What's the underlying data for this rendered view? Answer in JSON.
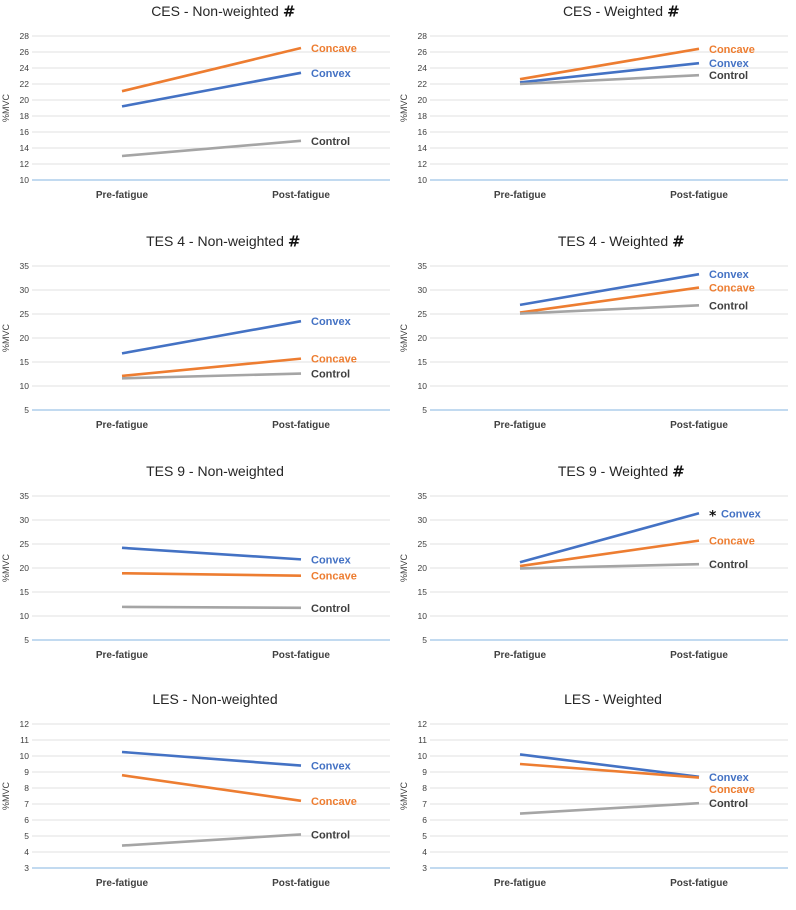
{
  "colors": {
    "convex": "#4472C4",
    "concave": "#ED7D31",
    "control": "#A5A5A5",
    "control_label": "#404040",
    "grid": "#D9D9D9",
    "axis": "#9DC3E6"
  },
  "chart_data": [
    {
      "type": "line",
      "title": "CES - Non-weighted",
      "marker": "#",
      "ylabel": "%MVC",
      "ylim": [
        10,
        28
      ],
      "yticks": [
        10,
        12,
        14,
        16,
        18,
        20,
        22,
        24,
        26,
        28
      ],
      "categories": [
        "Pre-fatigue",
        "Post-fatigue"
      ],
      "series": [
        {
          "name": "Concave",
          "key": "concave",
          "values": [
            21.1,
            26.5
          ]
        },
        {
          "name": "Convex",
          "key": "convex",
          "values": [
            19.2,
            23.4
          ]
        },
        {
          "name": "Control",
          "key": "control",
          "values": [
            13.0,
            14.9
          ]
        }
      ]
    },
    {
      "type": "line",
      "title": "CES - Weighted",
      "marker": "#",
      "ylabel": "%MVC",
      "ylim": [
        10,
        28
      ],
      "yticks": [
        10,
        12,
        14,
        16,
        18,
        20,
        22,
        24,
        26,
        28
      ],
      "categories": [
        "Pre-fatigue",
        "Post-fatigue"
      ],
      "series": [
        {
          "name": "Concave",
          "key": "concave",
          "values": [
            22.6,
            26.4
          ]
        },
        {
          "name": "Convex",
          "key": "convex",
          "values": [
            22.2,
            24.6
          ]
        },
        {
          "name": "Control",
          "key": "control",
          "values": [
            22.0,
            23.1
          ]
        }
      ]
    },
    {
      "type": "line",
      "title": "TES 4 - Non-weighted",
      "marker": "#",
      "ylabel": "%MVC",
      "ylim": [
        5,
        35
      ],
      "yticks": [
        5,
        10,
        15,
        20,
        25,
        30,
        35
      ],
      "categories": [
        "Pre-fatigue",
        "Post-fatigue"
      ],
      "series": [
        {
          "name": "Convex",
          "key": "convex",
          "values": [
            16.8,
            23.5
          ]
        },
        {
          "name": "Concave",
          "key": "concave",
          "values": [
            12.1,
            15.7
          ]
        },
        {
          "name": "Control",
          "key": "control",
          "values": [
            11.6,
            12.6
          ]
        }
      ]
    },
    {
      "type": "line",
      "title": "TES 4 - Weighted",
      "marker": "#",
      "ylabel": "%MVC",
      "ylim": [
        5,
        35
      ],
      "yticks": [
        5,
        10,
        15,
        20,
        25,
        30,
        35
      ],
      "categories": [
        "Pre-fatigue",
        "Post-fatigue"
      ],
      "series": [
        {
          "name": "Convex",
          "key": "convex",
          "values": [
            26.9,
            33.3
          ]
        },
        {
          "name": "Concave",
          "key": "concave",
          "values": [
            25.3,
            30.5
          ]
        },
        {
          "name": "Control",
          "key": "control",
          "values": [
            25.1,
            26.8
          ]
        }
      ]
    },
    {
      "type": "line",
      "title": "TES 9 - Non-weighted",
      "marker": "",
      "ylabel": "%MVC",
      "ylim": [
        5,
        35
      ],
      "yticks": [
        5,
        10,
        15,
        20,
        25,
        30,
        35
      ],
      "categories": [
        "Pre-fatigue",
        "Post-fatigue"
      ],
      "series": [
        {
          "name": "Convex",
          "key": "convex",
          "values": [
            24.2,
            21.8
          ]
        },
        {
          "name": "Concave",
          "key": "concave",
          "values": [
            18.9,
            18.4
          ]
        },
        {
          "name": "Control",
          "key": "control",
          "values": [
            11.9,
            11.7
          ]
        }
      ]
    },
    {
      "type": "line",
      "title": "TES 9 - Weighted",
      "marker": "#",
      "ylabel": "%MVC",
      "ylim": [
        5,
        35
      ],
      "yticks": [
        5,
        10,
        15,
        20,
        25,
        30,
        35
      ],
      "categories": [
        "Pre-fatigue",
        "Post-fatigue"
      ],
      "annotation": "*",
      "series": [
        {
          "name": "Convex",
          "key": "convex",
          "values": [
            21.2,
            31.4
          ]
        },
        {
          "name": "Concave",
          "key": "concave",
          "values": [
            20.4,
            25.7
          ]
        },
        {
          "name": "Control",
          "key": "control",
          "values": [
            19.9,
            20.8
          ]
        }
      ]
    },
    {
      "type": "line",
      "title": "LES - Non-weighted",
      "marker": "",
      "ylabel": "%MVC",
      "ylim": [
        3,
        12
      ],
      "yticks": [
        3,
        4,
        5,
        6,
        7,
        8,
        9,
        10,
        11,
        12
      ],
      "categories": [
        "Pre-fatigue",
        "Post-fatigue"
      ],
      "series": [
        {
          "name": "Convex",
          "key": "convex",
          "values": [
            10.25,
            9.4
          ]
        },
        {
          "name": "Concave",
          "key": "concave",
          "values": [
            8.8,
            7.2
          ]
        },
        {
          "name": "Control",
          "key": "control",
          "values": [
            4.4,
            5.1
          ]
        }
      ]
    },
    {
      "type": "line",
      "title": "LES - Weighted",
      "marker": "",
      "ylabel": "%MVC",
      "ylim": [
        3,
        12
      ],
      "yticks": [
        3,
        4,
        5,
        6,
        7,
        8,
        9,
        10,
        11,
        12
      ],
      "categories": [
        "Pre-fatigue",
        "Post-fatigue"
      ],
      "series": [
        {
          "name": "Convex",
          "key": "convex",
          "values": [
            10.1,
            8.7
          ]
        },
        {
          "name": "Concave",
          "key": "concave",
          "values": [
            9.5,
            8.65
          ]
        },
        {
          "name": "Control",
          "key": "control",
          "values": [
            6.4,
            7.05
          ]
        }
      ]
    }
  ]
}
